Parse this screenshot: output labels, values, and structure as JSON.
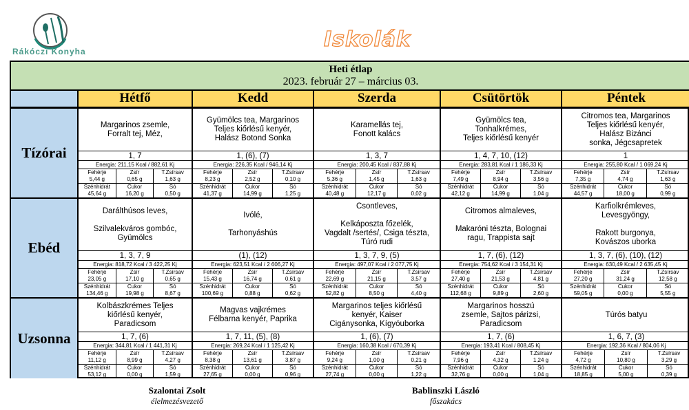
{
  "logo": {
    "text": "Rákóczi Konyha",
    "accent": "#1f6e64"
  },
  "page_title": "Iskolák",
  "header": {
    "title": "Heti étlap",
    "date_range": "2023. február 27 – március 03."
  },
  "days": [
    "Hétfő",
    "Kedd",
    "Szerda",
    "Csütörtök",
    "Péntek"
  ],
  "nutrient_labels": [
    "Fehérje",
    "Zsír",
    "T.Zsírsav",
    "Szénhidrát",
    "Cukor",
    "Só"
  ],
  "meals": [
    {
      "name": "Tízórai",
      "cells": [
        {
          "menu": "Margarinos zsemle,\nForralt tej, Méz,",
          "allergens": "1, 7",
          "energy": "Energia: 211,15 Kcal / 882,61 Kj",
          "nutrients": [
            "5,44 g",
            "0,65 g",
            "1,63 g",
            "45,64 g",
            "16,20 g",
            "0,50 g"
          ]
        },
        {
          "menu": "Gyümölcs tea, Margarinos\nTeljes kiőrlésű kenyér,\nHalász Botond Sonka",
          "allergens": "1, (6), (7)",
          "energy": "Energia: 226,35 Kcal / 946,14 Kj",
          "nutrients": [
            "8,23 g",
            "2,52 g",
            "0,10 g",
            "41,37 g",
            "14,99 g",
            "1,25 g"
          ]
        },
        {
          "menu": "Karamellás tej,\nFonott kalács",
          "allergens": "1, 3, 7",
          "energy": "Energia: 200,45 Kcal / 837,88 Kj",
          "nutrients": [
            "5,36 g",
            "1,45 g",
            "1,63 g",
            "40,48 g",
            "12,17 g",
            "0,02 g"
          ]
        },
        {
          "menu": "Gyümölcs tea,\nTonhalkrémes,\nTeljes kiőrlésű kenyér",
          "allergens": "1, 4, 7, 10, (12)",
          "energy": "Energia: 283,81 Kcal / 1 186,33 Kj",
          "nutrients": [
            "7,49 g",
            "8,94 g",
            "3,56 g",
            "42,12 g",
            "14,99 g",
            "1,04 g"
          ]
        },
        {
          "menu": "Citromos tea, Margarinos\nTeljes kiőrlésű kenyér,\nHalász Bizánci\nsonka, Jégcsapretek",
          "allergens": "1",
          "energy": "Energia: 255,80 Kcal / 1 069,24 Kj",
          "nutrients": [
            "7,35 g",
            "4,74 g",
            "1,63 g",
            "44,57 g",
            "18,00 g",
            "0,99 g"
          ]
        }
      ]
    },
    {
      "name": "Ebéd",
      "cells": [
        {
          "menu": "Darálthúsos leves,\n\nSzilvalekváros gombóc,\nGyümölcs",
          "allergens": "1, 3, 7, 9",
          "energy": "Energia: 818,72 Kcal / 3 422,25 Kj",
          "nutrients": [
            "23,05 g",
            "17,10 g",
            "0,65 g",
            "134,46 g",
            "19,98 g",
            "8,67 g"
          ]
        },
        {
          "menu": "Ivólé,\n\nTarhonyáshús",
          "allergens": "(1), (12)",
          "energy": "Energia: 623,51 Kcal / 2 606,27 Kj",
          "nutrients": [
            "15,43 g",
            "16,74 g",
            "0,61 g",
            "100,69 g",
            "0,88 g",
            "0,62 g"
          ]
        },
        {
          "menu": "Csontleves,\n\nKelkáposzta főzelék,\nVagdalt /sertés/, Csiga tészta,\nTúró rudi",
          "allergens": "1, 3, 7, 9, (5)",
          "energy": "Energia: 497,07 Kcal / 2 077,75 Kj",
          "nutrients": [
            "22,69 g",
            "21,15 g",
            "3,57 g",
            "52,82 g",
            "8,50 g",
            "4,40 g"
          ]
        },
        {
          "menu": "Citromos almaleves,\n\nMakaróni tészta, Bolognai\nragu, Trappista sajt",
          "allergens": "1, 7, (6), (12)",
          "energy": "Energia: 754,62 Kcal / 3 154,31 Kj",
          "nutrients": [
            "27,40 g",
            "21,53 g",
            "4,81 g",
            "112,68 g",
            "9,89 g",
            "2,60 g"
          ]
        },
        {
          "menu": "Karfiolkrémleves,\nLevesgyöngy,\n\nRakott burgonya,\nKovászos uborka",
          "allergens": "1, 3, 7, (6), (10), (12)",
          "energy": "Energia: 630,49 Kcal / 2 635,45 Kj",
          "nutrients": [
            "27,20 g",
            "31,24 g",
            "12,58 g",
            "59,05 g",
            "0,00 g",
            "5,55 g"
          ]
        }
      ]
    },
    {
      "name": "Uzsonna",
      "cells": [
        {
          "menu": "Kolbászkrémes Teljes\nkiőrlésű kenyér,\nParadicsom",
          "allergens": "1, 7, (6)",
          "energy": "Energia: 344,81 Kcal / 1 441,31 Kj",
          "nutrients": [
            "11,12 g",
            "8,99 g",
            "4,27 g",
            "53,12 g",
            "0,00 g",
            "1,59 g"
          ]
        },
        {
          "menu": "Magvas vajkrémes\nFélbarna kenyér, Paprika",
          "allergens": "1, 7, 11, (5), (8)",
          "energy": "Energia: 269,24 Kcal / 1 125,42 Kj",
          "nutrients": [
            "8,38 g",
            "13,61 g",
            "3,87 g",
            "27,65 g",
            "0,00 g",
            "0,96 g"
          ]
        },
        {
          "menu": "Margarinos teljes kiőrlésű\nkenyér, Kaiser\nCigánysonka, Kígyóuborka",
          "allergens": "1, (6), (7)",
          "energy": "Energia: 160,38 Kcal / 670,39 Kj",
          "nutrients": [
            "9,24 g",
            "1,00 g",
            "0,21 g",
            "27,74 g",
            "0,00 g",
            "1,22 g"
          ]
        },
        {
          "menu": "Margarinos hosszú\nzsemle, Sajtos párizsi,\nParadicsom",
          "allergens": "1, 7, (6)",
          "energy": "Energia: 193,41 Kcal / 808,45 Kj",
          "nutrients": [
            "7,96 g",
            "4,32 g",
            "1,24 g",
            "32,76 g",
            "0,00 g",
            "1,04 g"
          ]
        },
        {
          "menu": "Túrós batyu",
          "allergens": "1, 6, 7, (3)",
          "energy": "Energia: 192,36 Kcal / 804,06 Kj",
          "nutrients": [
            "4,72 g",
            "10,80 g",
            "3,29 g",
            "18,85 g",
            "5,00 g",
            "0,39 g"
          ]
        }
      ]
    }
  ],
  "signatures": [
    {
      "name": "Szalontai Zsolt",
      "role": "élelmezésvezető"
    },
    {
      "name": "Bablinszki László",
      "role": "főszakács"
    }
  ]
}
